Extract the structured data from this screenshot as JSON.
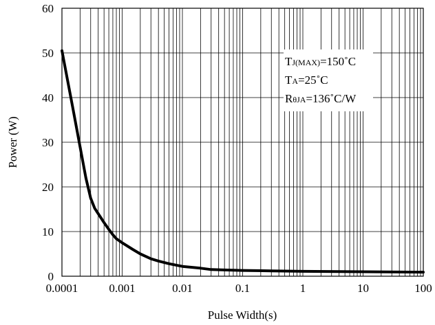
{
  "chart_data": {
    "type": "line",
    "title": "",
    "xlabel": "Pulse Width(s)",
    "ylabel": "Power (W)",
    "x_scale": "log",
    "xlim": [
      0.0001,
      100
    ],
    "ylim": [
      0,
      60
    ],
    "grid": true,
    "x_ticks": [
      "0.0001",
      "0.001",
      "0.01",
      "0.1",
      "1",
      "10",
      "100"
    ],
    "y_ticks": [
      "0",
      "10",
      "20",
      "30",
      "40",
      "50",
      "60"
    ],
    "series": [
      {
        "x": [
          0.0001,
          0.00015,
          0.0002,
          0.00025,
          0.0003,
          0.00035,
          0.0004,
          0.0005,
          0.0006,
          0.0007,
          0.0008,
          0.001,
          0.0015,
          0.002,
          0.003,
          0.004,
          0.006,
          0.01,
          0.02,
          0.03,
          0.05,
          0.1,
          0.3,
          1,
          10,
          100
        ],
        "y": [
          50.5,
          38,
          29,
          22,
          17.5,
          15.2,
          14,
          12,
          10.5,
          9.3,
          8.4,
          7.5,
          6,
          5,
          3.9,
          3.4,
          2.8,
          2.2,
          1.8,
          1.5,
          1.4,
          1.3,
          1.2,
          1.1,
          1.0,
          0.9
        ],
        "color": "#000000"
      }
    ],
    "annotation": {
      "line1": {
        "main": "T",
        "sub": "J(MAX)",
        "rest": "=150˚C"
      },
      "line2": {
        "main": "T",
        "sub": "A",
        "rest": "=25˚C"
      },
      "line3": {
        "main": "R",
        "sub": "θJA",
        "rest": "=136˚C/W"
      }
    }
  }
}
